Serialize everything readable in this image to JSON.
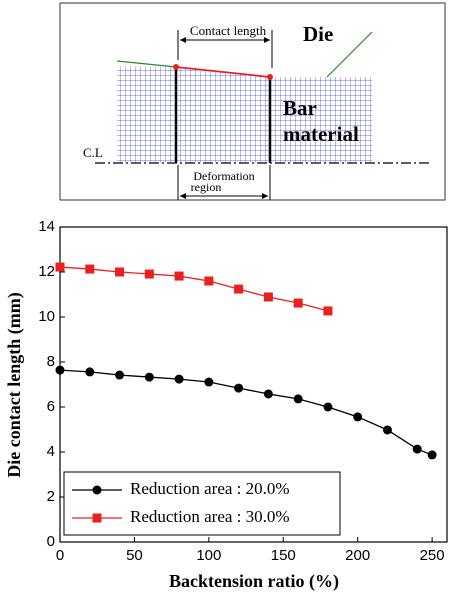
{
  "diagram": {
    "contact_label": "Contact length",
    "die_label": "Die",
    "bar_label_1": "Bar",
    "bar_label_2": "material",
    "centerline_label": "C.L",
    "deformation_label_1": "Deformation",
    "deformation_label_2": "region"
  },
  "chart_data": {
    "type": "line",
    "x_label": "Backtension ratio (%)",
    "y_label": "Die contact length (mm)",
    "xlim": [
      0,
      260
    ],
    "xticks": [
      0,
      50,
      100,
      150,
      200,
      250
    ],
    "ylim": [
      0,
      14
    ],
    "yticks": [
      0,
      2,
      4,
      6,
      8,
      10,
      12,
      14
    ],
    "legend": "lower left",
    "series": [
      {
        "name": "Reduction area : 20.0%",
        "color": "#000000",
        "marker": "circle",
        "x": [
          0,
          20,
          40,
          60,
          80,
          100,
          120,
          140,
          160,
          180,
          200,
          220,
          240,
          250
        ],
        "values": [
          7.64,
          7.56,
          7.42,
          7.33,
          7.24,
          7.11,
          6.84,
          6.58,
          6.36,
          6.0,
          5.56,
          4.98,
          4.13,
          3.87
        ]
      },
      {
        "name": "Reduction area : 30.0%",
        "color": "#e8201e",
        "marker": "square",
        "x": [
          0,
          20,
          40,
          60,
          80,
          100,
          120,
          140,
          160,
          180
        ],
        "values": [
          12.22,
          12.13,
          12.0,
          11.91,
          11.82,
          11.6,
          11.24,
          10.89,
          10.62,
          10.27
        ]
      }
    ]
  }
}
